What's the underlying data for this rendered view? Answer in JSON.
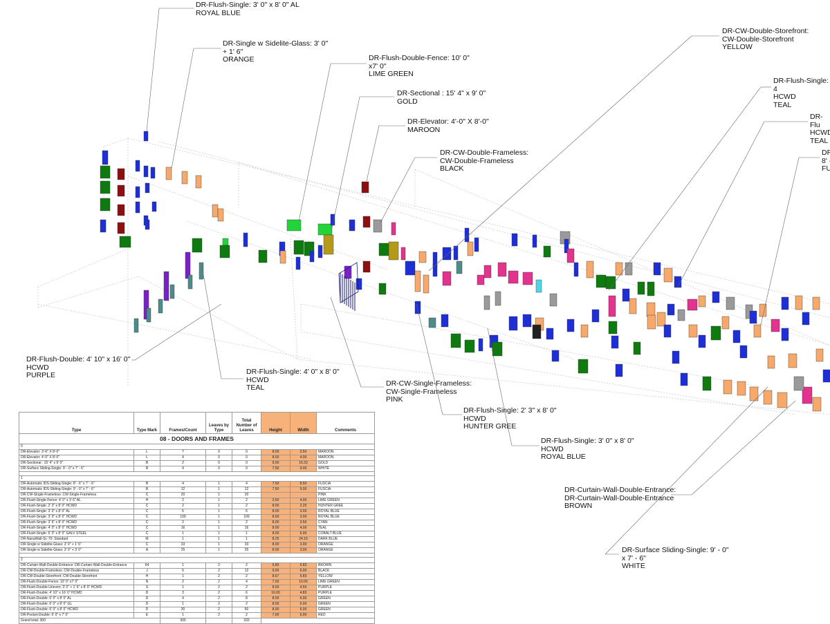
{
  "colors": {
    "royal_blue": "#1f2fd6",
    "hunter_green": "#0f7a0f",
    "maroon": "#8c1010",
    "orange": "#f6a96a",
    "teal": "#4e8c8c",
    "purple": "#7a20c8",
    "pink": "#e2338f",
    "lime_green": "#22d43a",
    "gold": "#b59a1a",
    "gray": "#9a9a9a",
    "cyan": "#4fd7e6",
    "black": "#222222",
    "wire": "#bdbdbd",
    "leader": "#666666",
    "table_header_orange": "#f6b27a"
  },
  "callouts": [
    {
      "id": "c1",
      "text": "DR-Flush-Single: 3' 0\" x 8' 0\" AL\nROYAL BLUE"
    },
    {
      "id": "c2",
      "text": "DR-Single w Sidelite-Glass: 3' 0\"\n+ 1' 6\"\nORANGE"
    },
    {
      "id": "c3",
      "text": "DR-Flush-Double-Fence: 10' 0\"\nx7' 0\"\nLIME GREEN"
    },
    {
      "id": "c4",
      "text": "DR-Sectional : 15' 4\" x 9' 0\"\nGOLD"
    },
    {
      "id": "c5",
      "text": "DR-Elevator: 4'-0\" X 8'-0\"\nMAROON"
    },
    {
      "id": "c6",
      "text": "DR-CW-Double-Frameless:\nCW-Double-Frameless\nBLACK"
    },
    {
      "id": "c7",
      "text": "DR-CW-Double-Storefront:\nCW-Double-Storefront\nYELLOW"
    },
    {
      "id": "c8",
      "text": "DR-Flush-Single: 4\nHCWD\nTEAL"
    },
    {
      "id": "c9",
      "text": "DR-Flu\nHCWD\nTEAL"
    },
    {
      "id": "c10",
      "text": "DR\n8' -\nFU"
    },
    {
      "id": "c11",
      "text": "DR-Flush-Double: 4' 10\" x 16' 0\"\nHCWD\nPURPLE"
    },
    {
      "id": "c12",
      "text": "DR-Flush-Single: 4' 0\" x 8' 0\"\nHCWD\nTEAL"
    },
    {
      "id": "c13",
      "text": "DR-CW-Single-Frameless:\nCW-Single-Frameless\nPINK"
    },
    {
      "id": "c14",
      "text": "DR-Flush-Single: 2' 3\" x 8' 0\"\nHCWD\nHUNTER GREE"
    },
    {
      "id": "c15",
      "text": "DR-Flush-Single: 3' 0\" x 8' 0\"\nHCWD\nROYAL BLUE"
    },
    {
      "id": "c16",
      "text": "DR-Curtain-Wall-Double-Entrance:\nDR-Curtain-Wall-Double-Entrance\nBROWN"
    },
    {
      "id": "c17",
      "text": "DR-Surface Sliding-Single: 9' - 0\"\nx 7' - 6\"\nWHITE"
    }
  ],
  "schedule": {
    "title": "08 - DOORS AND FRAMES",
    "columns": [
      "Type",
      "Type Mark",
      "Frames/Count",
      "Leaves by Type",
      "Total Number of Leaves",
      "Height",
      "Width",
      "Comments"
    ],
    "groups": [
      {
        "label": "0",
        "rows": [
          [
            "DR-Elevator: 3'-6\" X 8'-0\"",
            "L",
            "7",
            "0",
            "0",
            "8.00",
            "3.50",
            "MAROON"
          ],
          [
            "DR-Elevator: 4'-0\" X 8'-0\"",
            "L",
            "4",
            "0",
            "0",
            "8.00",
            "4.00",
            "MAROON"
          ],
          [
            "DR-Sectional : 15' 4\" x 9' 0\"",
            "B",
            "2",
            "0",
            "0",
            "9.00",
            "15.33",
            "GOLD"
          ],
          [
            "DR-Surface Sliding-Single: 9' - 0\" x 7' - 6\"",
            "R",
            "4",
            "0",
            "0",
            "7.50",
            "9.00",
            "WHITE"
          ]
        ]
      },
      {
        "label": "1",
        "rows": [
          [
            "DR-Automatic IDS-Sliding-Single: 8' - 6\" x 7' - 6\"",
            "B",
            "4",
            "1",
            "4",
            "7.50",
            "8.50",
            "FUSCIA"
          ],
          [
            "DR-Automatic IDS-Sliding-Single: 9' - 0\" x 7' - 6\"",
            "B",
            "12",
            "1",
            "12",
            "7.50",
            "9.00",
            "FUSCIA"
          ],
          [
            "DR-CW-Single-Frameless: CW-Single-Frameless",
            "C",
            "20",
            "1",
            "20",
            "",
            "",
            "PINK"
          ],
          [
            "DR-Flush-Single-Fence: 4' 0\" x 3' 6\" AL",
            "H",
            "2",
            "1",
            "2",
            "3.50",
            "4.00",
            "LIME GREEN"
          ],
          [
            "DR-Flush-Single: 2' 3\" x 8' 0\" HCWD",
            "C",
            "2",
            "1",
            "2",
            "8.00",
            "2.25",
            "HUNTER GREE"
          ],
          [
            "DR-Flush-Single: 3' 0\" x 8' 0\" AL",
            "C",
            "6",
            "1",
            "6",
            "8.00",
            "3.00",
            "ROYAL BLUE"
          ],
          [
            "DR-Flush-Single: 3' 0\" x 8' 0\" HCWD",
            "C",
            "109",
            "1",
            "109",
            "8.00",
            "3.00",
            "ROYAL BLUE"
          ],
          [
            "DR-Flush-Single: 3' 6\" x 8' 0\" HCWD",
            "C",
            "2",
            "1",
            "2",
            "8.00",
            "3.50",
            "CYAN"
          ],
          [
            "DR-Flush-Single: 4' 0\" x 8' 0\" HCWD",
            "C",
            "16",
            "1",
            "16",
            "8.00",
            "4.00",
            "TEAL"
          ],
          [
            "DR-Flush-Single: 6' 0\" x 8' 0\" GALV STEEL",
            "C",
            "1",
            "1",
            "1",
            "8.00",
            "6.00",
            "COBALT BLUE"
          ],
          [
            "DR-NanaWall-SL-70: Standard",
            "M",
            "1",
            "1",
            "1",
            "8.25",
            "24.16",
            "DARK BLUE"
          ],
          [
            "DR-Single w Sidelite-Glass: 3' 0\" + 1' 6\"",
            "C",
            "33",
            "1",
            "33",
            "8.00",
            "3.00",
            "ORANGE"
          ],
          [
            "DR-Single w Sidelite-Glass: 3' 0\" + 3' 0\"",
            "A",
            "25",
            "1",
            "25",
            "8.00",
            "3.00",
            "ORANGE"
          ]
        ]
      },
      {
        "label": "2",
        "rows": [
          [
            "DR-Curtain-Wall-Double-Entrance: DR-Curtain-Wall-Double-Entrance",
            "64",
            "1",
            "2",
            "2",
            "6.83",
            "5.83",
            "BROWN"
          ],
          [
            "DR-CW-Double-Frameless: CW-Double-Frameless",
            "J",
            "6",
            "2",
            "12",
            "9.00",
            "6.00",
            "BLACK"
          ],
          [
            "DR-CW-Double-Storefront: CW-Double-Storefront",
            "H",
            "1",
            "2",
            "2",
            "8.67",
            "5.83",
            "YELLOW"
          ],
          [
            "DR-Flush-Double-Fence: 10' 0\" x7' 0\"",
            "N",
            "2",
            "2",
            "4",
            "7.00",
            "10.00",
            "LIME GREEN"
          ],
          [
            "DR-Flush-Double-Uneven: 3' 0\" + 1' 6\" x 8' 0\" HCWD",
            "S",
            "1",
            "2",
            "2",
            "8.00",
            "4.50",
            "PURPLE"
          ],
          [
            "DR-Flush-Double: 4' 10\" x 16' 0\" HCWD",
            "D",
            "3",
            "2",
            "6",
            "16.00",
            "4.83",
            "PURPLE"
          ],
          [
            "DR-Flush-Double: 6' 0\" x 8' 0\" AL",
            "D",
            "4",
            "2",
            "8",
            "8.00",
            "6.00",
            "GREEN"
          ],
          [
            "DR-Flush-Double: 6' 0\" x 8' 0\" GL",
            "D",
            "1",
            "2",
            "2",
            "8.00",
            "6.00",
            "GREEN"
          ],
          [
            "DR-Flush-Double: 6' 0\" x 8' 0\" HCWD",
            "D",
            "30",
            "2",
            "60",
            "8.00",
            "6.00",
            "GREEN"
          ],
          [
            "DR-Pocket-Double: 6' 0\" x 7' 0\"",
            "E",
            "1",
            "2",
            "2",
            "7.00",
            "6.00",
            "RED"
          ]
        ]
      }
    ],
    "grand_total_label": "Grand total: 300",
    "grand_total_frames": "300",
    "grand_total_leaves": "333"
  }
}
